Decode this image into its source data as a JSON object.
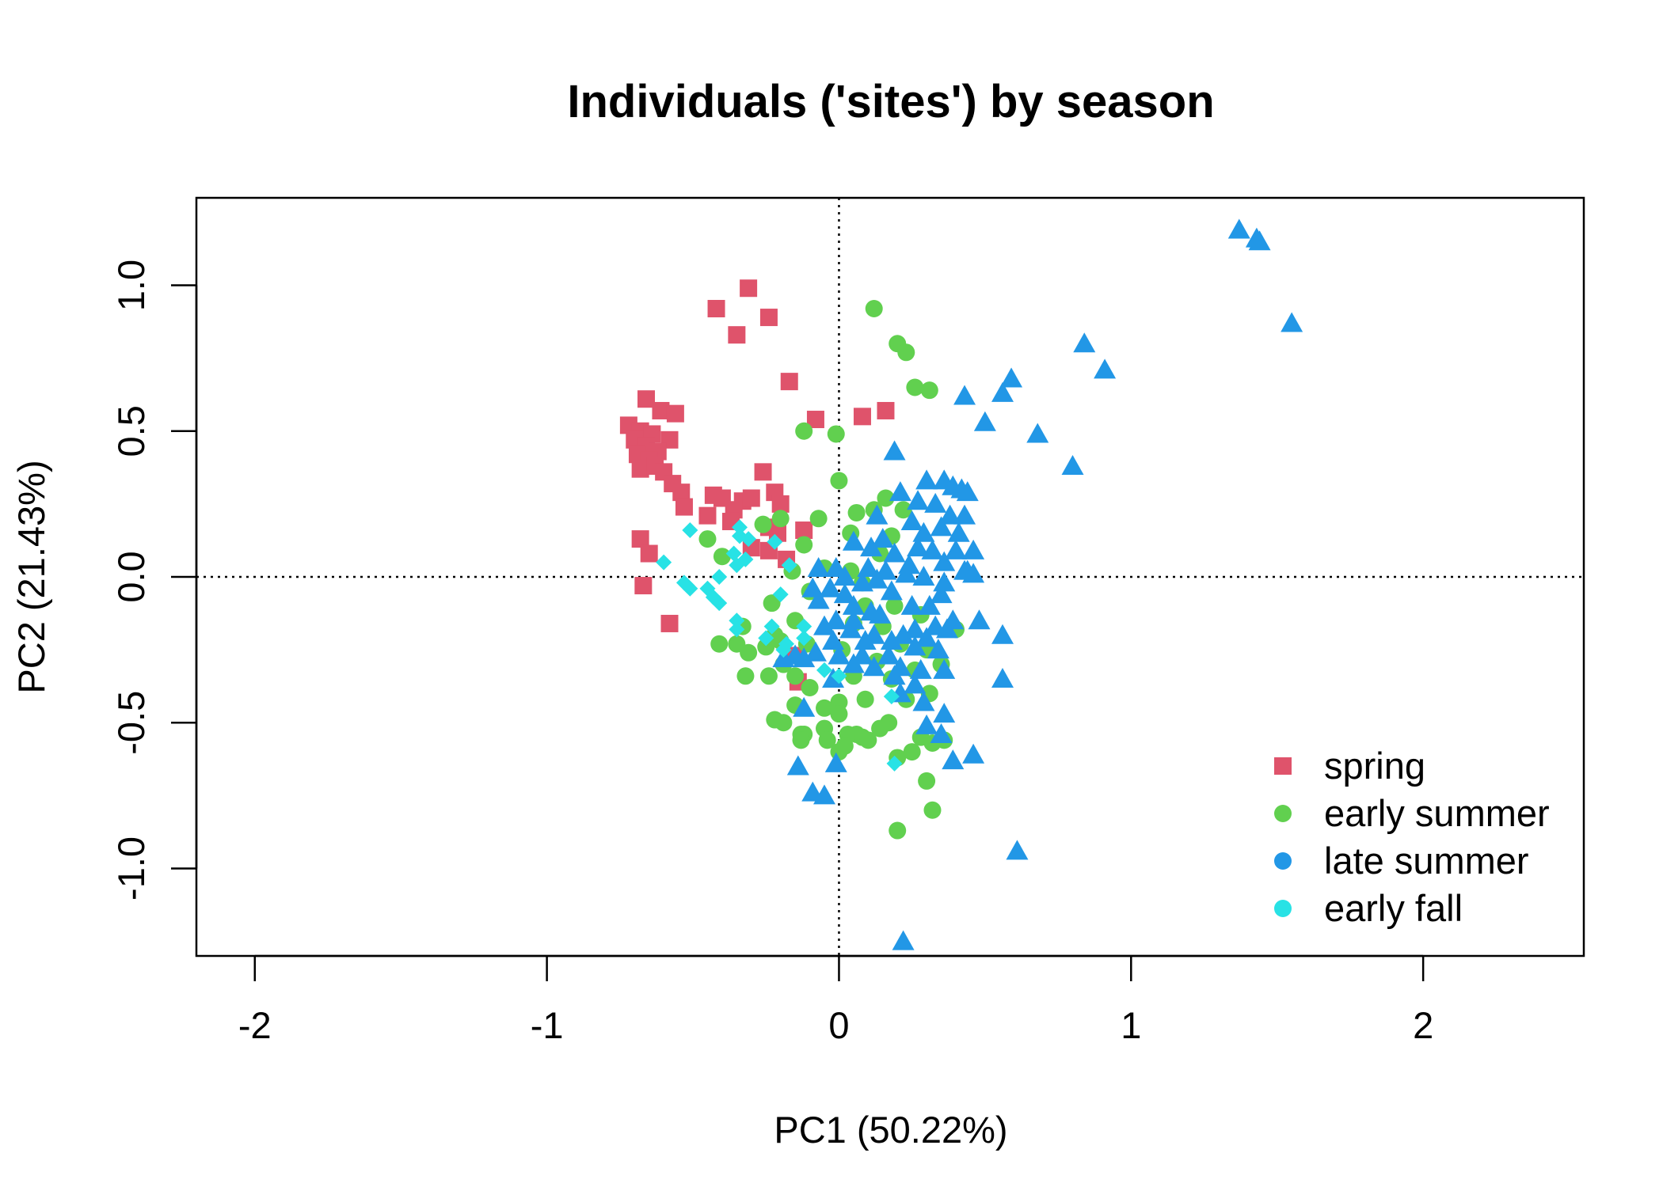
{
  "chart_data": {
    "type": "scatter",
    "title": "Individuals ('sites') by season",
    "xlabel": "PC1 (50.22%)",
    "ylabel": "PC2 (21.43%)",
    "xlim": [
      -2.2,
      2.55
    ],
    "ylim": [
      -1.3,
      1.3
    ],
    "x_ticks": [
      -2,
      -1,
      0,
      1,
      2
    ],
    "x_tick_labels": [
      "-2",
      "-1",
      "0",
      "1",
      "2"
    ],
    "y_ticks": [
      -1.0,
      -0.5,
      0.0,
      0.5,
      1.0
    ],
    "y_tick_labels": [
      "-1.0",
      "-0.5",
      "0.0",
      "0.5",
      "1.0"
    ],
    "reference_lines": {
      "x": 0,
      "y": 0,
      "style": "dotted"
    },
    "grid": false,
    "legend_position": "bottom-right",
    "series": [
      {
        "name": "spring",
        "color": "#DF536B",
        "marker": "square",
        "points": [
          [
            -0.31,
            0.99
          ],
          [
            -0.42,
            0.92
          ],
          [
            -0.24,
            0.89
          ],
          [
            -0.35,
            0.83
          ],
          [
            -0.17,
            0.67
          ],
          [
            -0.66,
            0.61
          ],
          [
            -0.61,
            0.57
          ],
          [
            -0.56,
            0.56
          ],
          [
            -0.72,
            0.52
          ],
          [
            -0.68,
            0.5
          ],
          [
            -0.64,
            0.49
          ],
          [
            -0.7,
            0.47
          ],
          [
            -0.66,
            0.45
          ],
          [
            -0.58,
            0.47
          ],
          [
            -0.62,
            0.43
          ],
          [
            -0.69,
            0.42
          ],
          [
            -0.65,
            0.4
          ],
          [
            -0.68,
            0.37
          ],
          [
            -0.63,
            0.38
          ],
          [
            -0.6,
            0.36
          ],
          [
            -0.57,
            0.32
          ],
          [
            -0.54,
            0.29
          ],
          [
            -0.43,
            0.28
          ],
          [
            -0.4,
            0.27
          ],
          [
            -0.33,
            0.26
          ],
          [
            -0.3,
            0.27
          ],
          [
            -0.22,
            0.29
          ],
          [
            -0.26,
            0.36
          ],
          [
            -0.2,
            0.25
          ],
          [
            -0.36,
            0.23
          ],
          [
            -0.53,
            0.24
          ],
          [
            -0.37,
            0.19
          ],
          [
            -0.45,
            0.21
          ],
          [
            -0.24,
            0.17
          ],
          [
            -0.12,
            0.16
          ],
          [
            -0.21,
            0.15
          ],
          [
            -0.68,
            0.13
          ],
          [
            -0.65,
            0.08
          ],
          [
            -0.24,
            0.09
          ],
          [
            -0.67,
            -0.03
          ],
          [
            -0.58,
            -0.16
          ],
          [
            -0.15,
            -0.27
          ],
          [
            -0.14,
            -0.36
          ],
          [
            0.08,
            0.55
          ],
          [
            0.16,
            0.57
          ],
          [
            -0.08,
            0.54
          ],
          [
            -0.3,
            0.1
          ],
          [
            -0.18,
            0.06
          ]
        ]
      },
      {
        "name": "early summer",
        "color": "#61D04F",
        "marker": "circle",
        "points": [
          [
            0.12,
            0.92
          ],
          [
            0.2,
            0.8
          ],
          [
            0.23,
            0.77
          ],
          [
            0.26,
            0.65
          ],
          [
            0.31,
            0.64
          ],
          [
            -0.12,
            0.5
          ],
          [
            -0.01,
            0.49
          ],
          [
            0.0,
            0.33
          ],
          [
            0.16,
            0.27
          ],
          [
            0.06,
            0.22
          ],
          [
            0.12,
            0.23
          ],
          [
            0.22,
            0.23
          ],
          [
            -0.07,
            0.2
          ],
          [
            -0.2,
            0.2
          ],
          [
            -0.26,
            0.18
          ],
          [
            0.18,
            0.14
          ],
          [
            0.04,
            0.15
          ],
          [
            -0.12,
            0.11
          ],
          [
            0.14,
            0.08
          ],
          [
            -0.4,
            0.07
          ],
          [
            -0.45,
            0.13
          ],
          [
            -0.16,
            0.02
          ],
          [
            -0.05,
            0.03
          ],
          [
            0.04,
            0.02
          ],
          [
            0.08,
            -0.02
          ],
          [
            -0.1,
            -0.05
          ],
          [
            0.09,
            -0.1
          ],
          [
            -0.23,
            -0.09
          ],
          [
            0.19,
            -0.1
          ],
          [
            -0.15,
            -0.15
          ],
          [
            0.28,
            -0.13
          ],
          [
            0.05,
            -0.16
          ],
          [
            0.15,
            -0.17
          ],
          [
            -0.2,
            -0.22
          ],
          [
            -0.33,
            -0.17
          ],
          [
            -0.41,
            -0.23
          ],
          [
            0.21,
            -0.23
          ],
          [
            0.3,
            -0.25
          ],
          [
            0.4,
            -0.18
          ],
          [
            -0.35,
            -0.23
          ],
          [
            -0.22,
            -0.2
          ],
          [
            -0.11,
            -0.23
          ],
          [
            0.01,
            -0.25
          ],
          [
            -0.31,
            -0.26
          ],
          [
            -0.25,
            -0.24
          ],
          [
            -0.19,
            -0.3
          ],
          [
            0.13,
            -0.29
          ],
          [
            0.26,
            -0.32
          ],
          [
            0.35,
            -0.3
          ],
          [
            -0.32,
            -0.34
          ],
          [
            -0.24,
            -0.34
          ],
          [
            -0.15,
            -0.34
          ],
          [
            0.05,
            -0.34
          ],
          [
            0.18,
            -0.35
          ],
          [
            -0.1,
            -0.38
          ],
          [
            0.31,
            -0.4
          ],
          [
            -0.15,
            -0.44
          ],
          [
            -0.05,
            -0.45
          ],
          [
            0.0,
            -0.43
          ],
          [
            0.09,
            -0.42
          ],
          [
            0.23,
            -0.42
          ],
          [
            -0.22,
            -0.49
          ],
          [
            0.17,
            -0.5
          ],
          [
            -0.19,
            -0.5
          ],
          [
            0.0,
            -0.47
          ],
          [
            0.14,
            -0.52
          ],
          [
            -0.05,
            -0.52
          ],
          [
            0.06,
            -0.54
          ],
          [
            -0.13,
            -0.54
          ],
          [
            0.28,
            -0.55
          ],
          [
            -0.12,
            -0.54
          ],
          [
            0.03,
            -0.54
          ],
          [
            0.08,
            -0.55
          ],
          [
            0.32,
            -0.57
          ],
          [
            -0.04,
            -0.56
          ],
          [
            0.0,
            -0.6
          ],
          [
            0.1,
            -0.56
          ],
          [
            -0.13,
            -0.56
          ],
          [
            0.2,
            -0.62
          ],
          [
            0.3,
            -0.7
          ],
          [
            0.32,
            -0.8
          ],
          [
            0.2,
            -0.87
          ],
          [
            0.36,
            -0.56
          ],
          [
            0.02,
            -0.58
          ],
          [
            0.25,
            -0.6
          ]
        ]
      },
      {
        "name": "late summer",
        "color": "#2297E6",
        "marker": "triangle",
        "points": [
          [
            1.37,
            1.19
          ],
          [
            1.43,
            1.16
          ],
          [
            1.44,
            1.15
          ],
          [
            1.55,
            0.87
          ],
          [
            0.84,
            0.8
          ],
          [
            0.91,
            0.71
          ],
          [
            0.59,
            0.68
          ],
          [
            0.56,
            0.63
          ],
          [
            0.43,
            0.62
          ],
          [
            0.5,
            0.53
          ],
          [
            0.68,
            0.49
          ],
          [
            0.8,
            0.38
          ],
          [
            0.19,
            0.43
          ],
          [
            0.3,
            0.33
          ],
          [
            0.36,
            0.33
          ],
          [
            0.39,
            0.31
          ],
          [
            0.42,
            0.3
          ],
          [
            0.44,
            0.29
          ],
          [
            0.21,
            0.29
          ],
          [
            0.27,
            0.26
          ],
          [
            0.33,
            0.25
          ],
          [
            0.38,
            0.21
          ],
          [
            0.43,
            0.21
          ],
          [
            0.13,
            0.21
          ],
          [
            0.25,
            0.19
          ],
          [
            0.29,
            0.15
          ],
          [
            0.35,
            0.17
          ],
          [
            0.41,
            0.15
          ],
          [
            0.15,
            0.13
          ],
          [
            0.27,
            0.1
          ],
          [
            0.32,
            0.09
          ],
          [
            0.4,
            0.09
          ],
          [
            0.46,
            0.09
          ],
          [
            0.05,
            0.12
          ],
          [
            0.11,
            0.1
          ],
          [
            0.19,
            0.08
          ],
          [
            0.24,
            0.04
          ],
          [
            0.36,
            0.05
          ],
          [
            0.44,
            0.02
          ],
          [
            0.46,
            0.01
          ],
          [
            0.1,
            0.03
          ],
          [
            0.16,
            0.02
          ],
          [
            0.23,
            0.01
          ],
          [
            0.29,
            0.0
          ],
          [
            0.36,
            -0.02
          ],
          [
            0.43,
            0.02
          ],
          [
            -0.07,
            0.03
          ],
          [
            -0.01,
            0.03
          ],
          [
            0.02,
            0.0
          ],
          [
            0.08,
            -0.02
          ],
          [
            0.13,
            -0.01
          ],
          [
            -0.09,
            -0.04
          ],
          [
            -0.03,
            -0.04
          ],
          [
            0.02,
            -0.06
          ],
          [
            0.18,
            -0.05
          ],
          [
            0.35,
            -0.06
          ],
          [
            -0.07,
            -0.08
          ],
          [
            0.05,
            -0.1
          ],
          [
            0.11,
            -0.12
          ],
          [
            0.25,
            -0.1
          ],
          [
            0.31,
            -0.1
          ],
          [
            0.48,
            -0.15
          ],
          [
            0.56,
            -0.2
          ],
          [
            0.39,
            -0.15
          ],
          [
            0.33,
            -0.17
          ],
          [
            0.14,
            -0.13
          ],
          [
            0.05,
            -0.15
          ],
          [
            -0.01,
            -0.15
          ],
          [
            -0.05,
            -0.17
          ],
          [
            0.26,
            -0.18
          ],
          [
            0.37,
            -0.18
          ],
          [
            0.3,
            -0.21
          ],
          [
            0.22,
            -0.2
          ],
          [
            0.12,
            -0.2
          ],
          [
            0.04,
            -0.18
          ],
          [
            -0.02,
            -0.22
          ],
          [
            0.09,
            -0.22
          ],
          [
            0.18,
            -0.22
          ],
          [
            0.26,
            -0.24
          ],
          [
            0.34,
            -0.25
          ],
          [
            -0.08,
            -0.26
          ],
          [
            0.0,
            -0.27
          ],
          [
            0.08,
            -0.27
          ],
          [
            0.17,
            -0.27
          ],
          [
            -0.12,
            -0.28
          ],
          [
            -0.19,
            -0.28
          ],
          [
            -0.15,
            -0.27
          ],
          [
            0.05,
            -0.3
          ],
          [
            0.12,
            -0.31
          ],
          [
            0.21,
            -0.31
          ],
          [
            0.28,
            -0.32
          ],
          [
            0.36,
            -0.32
          ],
          [
            0.56,
            -0.35
          ],
          [
            0.19,
            -0.34
          ],
          [
            0.26,
            -0.37
          ],
          [
            0.21,
            -0.4
          ],
          [
            0.29,
            -0.43
          ],
          [
            -0.02,
            -0.35
          ],
          [
            -0.12,
            -0.45
          ],
          [
            0.3,
            -0.51
          ],
          [
            0.35,
            -0.54
          ],
          [
            0.46,
            -0.61
          ],
          [
            0.39,
            -0.63
          ],
          [
            -0.14,
            -0.65
          ],
          [
            -0.01,
            -0.64
          ],
          [
            -0.09,
            -0.74
          ],
          [
            -0.05,
            -0.75
          ],
          [
            0.61,
            -0.94
          ],
          [
            0.22,
            -1.25
          ],
          [
            0.36,
            -0.47
          ]
        ]
      },
      {
        "name": "early fall",
        "color": "#28E2E5",
        "marker": "diamond",
        "points": [
          [
            -0.51,
            0.16
          ],
          [
            -0.34,
            0.17
          ],
          [
            -0.34,
            0.14
          ],
          [
            -0.31,
            0.13
          ],
          [
            -0.36,
            0.08
          ],
          [
            -0.32,
            0.06
          ],
          [
            -0.6,
            0.05
          ],
          [
            -0.35,
            0.04
          ],
          [
            -0.41,
            0.0
          ],
          [
            -0.53,
            -0.02
          ],
          [
            -0.52,
            -0.03
          ],
          [
            -0.51,
            -0.04
          ],
          [
            -0.45,
            -0.04
          ],
          [
            -0.43,
            -0.07
          ],
          [
            -0.41,
            -0.09
          ],
          [
            -0.2,
            -0.06
          ],
          [
            -0.35,
            -0.15
          ],
          [
            -0.35,
            -0.18
          ],
          [
            -0.23,
            -0.17
          ],
          [
            -0.25,
            -0.21
          ],
          [
            -0.12,
            -0.17
          ],
          [
            -0.18,
            -0.23
          ],
          [
            -0.19,
            -0.25
          ],
          [
            -0.12,
            -0.21
          ],
          [
            -0.05,
            -0.32
          ],
          [
            0.0,
            -0.34
          ],
          [
            0.18,
            -0.41
          ],
          [
            0.19,
            -0.64
          ],
          [
            -0.22,
            0.12
          ],
          [
            -0.17,
            0.04
          ]
        ]
      }
    ]
  }
}
